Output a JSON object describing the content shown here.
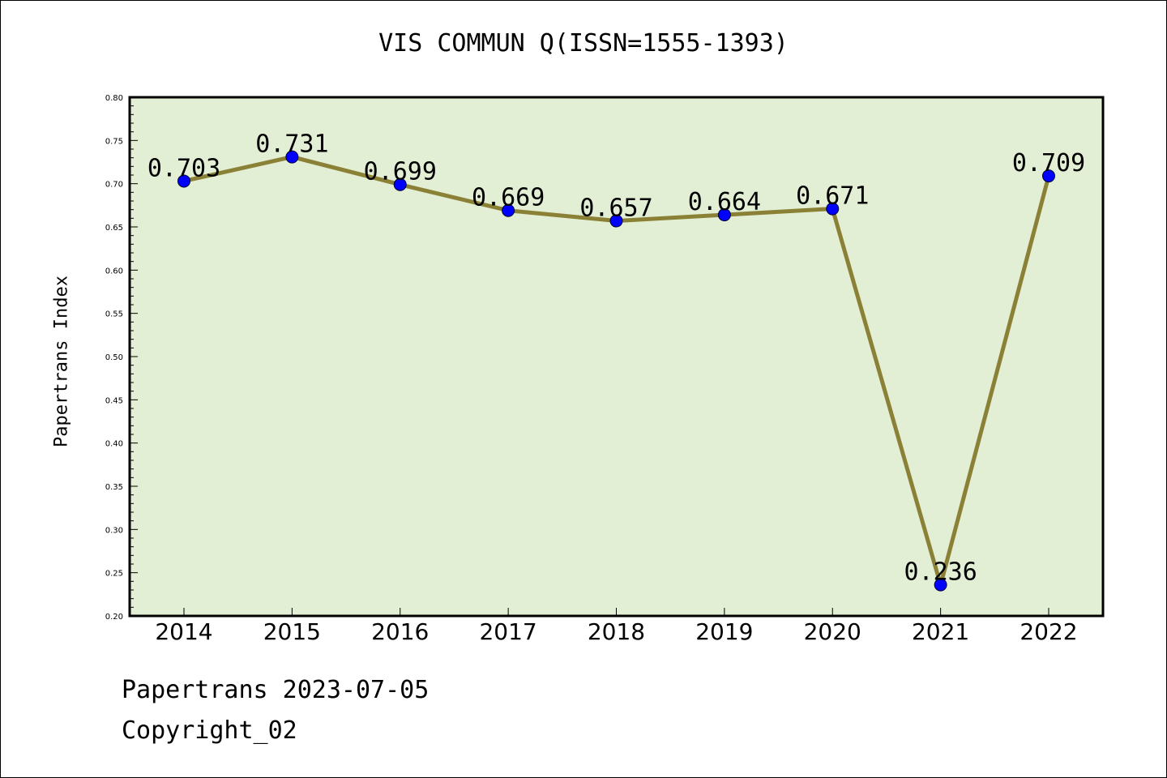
{
  "title": "VIS COMMUN Q(ISSN=1555-1393)",
  "ylabel": "Papertrans Index",
  "footer": {
    "line1": "Papertrans 2023-07-05",
    "line2": "Copyright_02"
  },
  "colors": {
    "plot_background": "#e2efd5",
    "line": "#8b8136",
    "marker": "#0000ff"
  },
  "chart_data": {
    "type": "line",
    "title": "VIS COMMUN Q(ISSN=1555-1393)",
    "xlabel": "",
    "ylabel": "Papertrans Index",
    "categories": [
      "2014",
      "2015",
      "2016",
      "2017",
      "2018",
      "2019",
      "2020",
      "2021",
      "2022"
    ],
    "values": [
      0.703,
      0.731,
      0.699,
      0.669,
      0.657,
      0.664,
      0.671,
      0.236,
      0.709
    ],
    "data_labels": [
      "0.703",
      "0.731",
      "0.699",
      "0.669",
      "0.657",
      "0.664",
      "0.671",
      "0.236",
      "0.709"
    ],
    "ylim": [
      0.2,
      0.8
    ],
    "yticks": [
      "0.20",
      "0.25",
      "0.30",
      "0.35",
      "0.40",
      "0.45",
      "0.50",
      "0.55",
      "0.60",
      "0.65",
      "0.70",
      "0.75",
      "0.80"
    ],
    "grid": false,
    "legend": "none"
  }
}
